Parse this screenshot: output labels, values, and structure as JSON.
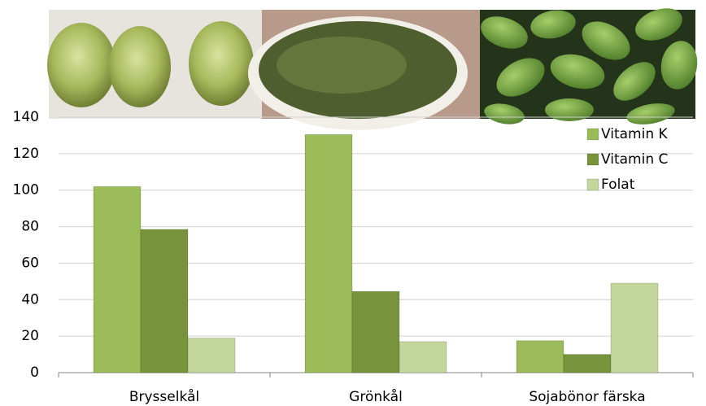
{
  "chart_data": {
    "type": "bar",
    "categories": [
      "Brysselkål",
      "Grönkål",
      "Sojabönor färska"
    ],
    "series": [
      {
        "name": "Vitamin K",
        "color": "#9bbb59",
        "values": [
          102,
          130.5,
          17.5
        ]
      },
      {
        "name": "Vitamin C",
        "color": "#77933c",
        "values": [
          78.5,
          44.5,
          10
        ]
      },
      {
        "name": "Folat",
        "color": "#c3d69b",
        "values": [
          19,
          17,
          49
        ]
      }
    ],
    "ylim": [
      0,
      140
    ],
    "yticks": [
      0,
      20,
      40,
      60,
      80,
      100,
      120,
      140
    ],
    "grid": true,
    "legend": "top-right"
  }
}
